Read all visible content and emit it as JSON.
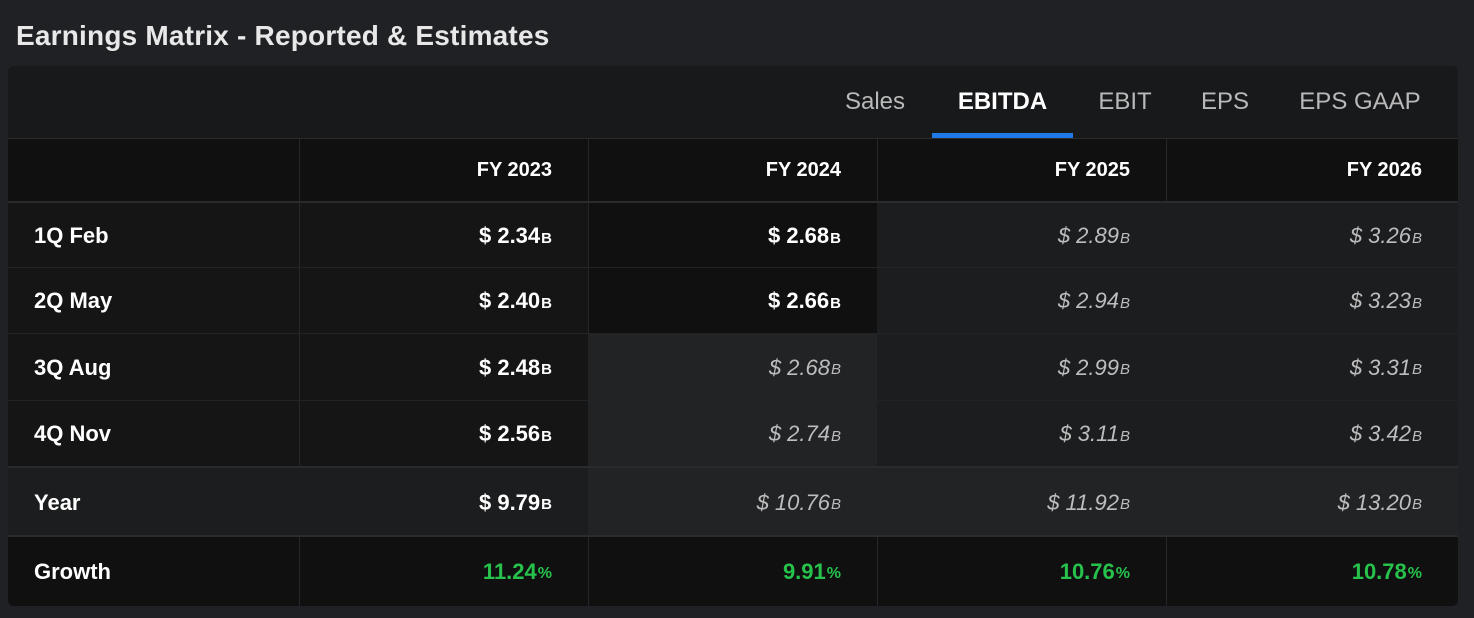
{
  "title": "Earnings Matrix - Reported & Estimates",
  "tabs": [
    {
      "label": "Sales",
      "active": false
    },
    {
      "label": "EBITDA",
      "active": true
    },
    {
      "label": "EBIT",
      "active": false
    },
    {
      "label": "EPS",
      "active": false
    },
    {
      "label": "EPS GAAP",
      "active": false
    }
  ],
  "columns": [
    "FY 2023",
    "FY 2024",
    "FY 2025",
    "FY 2026"
  ],
  "rows": [
    {
      "label": "1Q Feb",
      "cells": [
        {
          "value": "$ 2.34",
          "unit": "B",
          "type": "reported"
        },
        {
          "value": "$ 2.68",
          "unit": "B",
          "type": "reported"
        },
        {
          "value": "$ 2.89",
          "unit": "B",
          "type": "estimate"
        },
        {
          "value": "$ 3.26",
          "unit": "B",
          "type": "estimate"
        }
      ]
    },
    {
      "label": "2Q May",
      "cells": [
        {
          "value": "$ 2.40",
          "unit": "B",
          "type": "reported"
        },
        {
          "value": "$ 2.66",
          "unit": "B",
          "type": "reported"
        },
        {
          "value": "$ 2.94",
          "unit": "B",
          "type": "estimate"
        },
        {
          "value": "$ 3.23",
          "unit": "B",
          "type": "estimate"
        }
      ]
    },
    {
      "label": "3Q Aug",
      "cells": [
        {
          "value": "$ 2.48",
          "unit": "B",
          "type": "reported"
        },
        {
          "value": "$ 2.68",
          "unit": "B",
          "type": "estimate"
        },
        {
          "value": "$ 2.99",
          "unit": "B",
          "type": "estimate"
        },
        {
          "value": "$ 3.31",
          "unit": "B",
          "type": "estimate"
        }
      ]
    },
    {
      "label": "4Q Nov",
      "cells": [
        {
          "value": "$ 2.56",
          "unit": "B",
          "type": "reported"
        },
        {
          "value": "$ 2.74",
          "unit": "B",
          "type": "estimate"
        },
        {
          "value": "$ 3.11",
          "unit": "B",
          "type": "estimate"
        },
        {
          "value": "$ 3.42",
          "unit": "B",
          "type": "estimate"
        }
      ]
    },
    {
      "label": "Year",
      "cells": [
        {
          "value": "$ 9.79",
          "unit": "B",
          "type": "reported"
        },
        {
          "value": "$ 10.76",
          "unit": "B",
          "type": "estimate"
        },
        {
          "value": "$ 11.92",
          "unit": "B",
          "type": "estimate"
        },
        {
          "value": "$ 13.20",
          "unit": "B",
          "type": "estimate"
        }
      ]
    }
  ],
  "growth": {
    "label": "Growth",
    "cells": [
      {
        "value": "11.24",
        "unit": "%"
      },
      {
        "value": "9.91",
        "unit": "%"
      },
      {
        "value": "10.76",
        "unit": "%"
      },
      {
        "value": "10.78",
        "unit": "%"
      }
    ]
  },
  "colors": {
    "accent": "#1f7ae8",
    "growth": "#27c24c",
    "background": "#202124"
  }
}
